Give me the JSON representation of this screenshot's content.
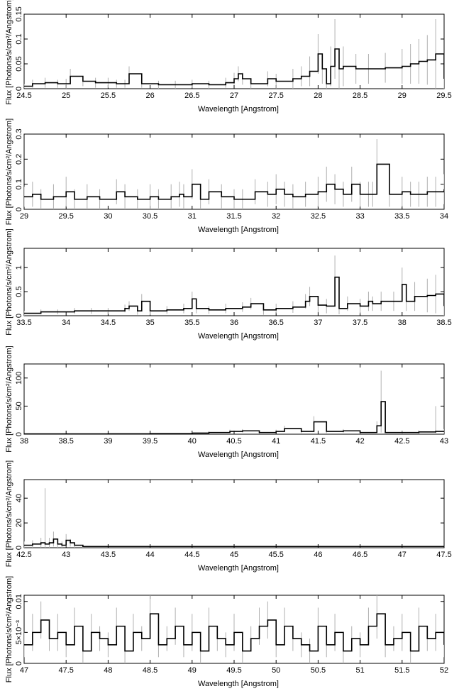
{
  "chart_data": [
    {
      "type": "line",
      "xlabel": "Wavelength [Angstrom]",
      "ylabel": "Flux [Photons/s/cm²/Angstrom]",
      "xlim": [
        24.5,
        29.5
      ],
      "ylim": [
        0,
        0.15
      ],
      "xticks": [
        {
          "v": 24.5,
          "label": "24.5"
        },
        {
          "v": 25,
          "label": "25"
        },
        {
          "v": 25.5,
          "label": "25.5"
        },
        {
          "v": 26,
          "label": "26"
        },
        {
          "v": 26.5,
          "label": "26.5"
        },
        {
          "v": 27,
          "label": "27"
        },
        {
          "v": 27.5,
          "label": "27.5"
        },
        {
          "v": 28,
          "label": "28"
        },
        {
          "v": 28.5,
          "label": "28.5"
        },
        {
          "v": 29,
          "label": "29"
        },
        {
          "v": 29.5,
          "label": "29.5"
        }
      ],
      "yticks": [
        {
          "v": 0,
          "label": "0"
        },
        {
          "v": 0.05,
          "label": "0.05"
        },
        {
          "v": 0.1,
          "label": "0.1"
        },
        {
          "v": 0.15,
          "label": "0.15"
        }
      ],
      "series": [
        {
          "x": [
            24.5,
            24.6,
            24.75,
            24.9,
            25.0,
            25.05,
            25.2,
            25.35,
            25.5,
            25.6,
            25.7,
            25.75,
            25.9,
            26.1,
            26.3,
            26.5,
            26.7,
            26.9,
            27.0,
            27.05,
            27.1,
            27.2,
            27.4,
            27.5,
            27.7,
            27.8,
            27.9,
            28.0,
            28.05,
            28.1,
            28.15,
            28.2,
            28.25,
            28.3,
            28.45,
            28.6,
            28.8,
            29.0,
            29.1,
            29.2,
            29.3,
            29.4,
            29.5
          ],
          "y": [
            0.005,
            0.01,
            0.012,
            0.01,
            0.01,
            0.025,
            0.015,
            0.012,
            0.012,
            0.01,
            0.01,
            0.03,
            0.01,
            0.008,
            0.008,
            0.01,
            0.008,
            0.012,
            0.02,
            0.03,
            0.02,
            0.01,
            0.02,
            0.015,
            0.02,
            0.025,
            0.035,
            0.07,
            0.04,
            0.01,
            0.045,
            0.08,
            0.04,
            0.045,
            0.04,
            0.04,
            0.042,
            0.045,
            0.05,
            0.055,
            0.058,
            0.07,
            0.02
          ],
          "err": [
            0.004,
            0.008,
            0.01,
            0.008,
            0.01,
            0.015,
            0.01,
            0.01,
            0.01,
            0.008,
            0.008,
            0.015,
            0.008,
            0.008,
            0.008,
            0.008,
            0.008,
            0.01,
            0.012,
            0.015,
            0.012,
            0.01,
            0.015,
            0.015,
            0.02,
            0.02,
            0.03,
            0.04,
            0.03,
            0.01,
            0.04,
            0.06,
            0.04,
            0.04,
            0.03,
            0.03,
            0.03,
            0.035,
            0.04,
            0.045,
            0.05,
            0.07,
            0.03
          ]
        }
      ]
    },
    {
      "type": "line",
      "xlabel": "Wavelength [Angstrom]",
      "ylabel": "Flux [Photons/s/cm²/Angstrom]",
      "xlim": [
        29,
        34
      ],
      "ylim": [
        0,
        0.3
      ],
      "xticks": [
        {
          "v": 29,
          "label": "29"
        },
        {
          "v": 29.5,
          "label": "29.5"
        },
        {
          "v": 30,
          "label": "30"
        },
        {
          "v": 30.5,
          "label": "30.5"
        },
        {
          "v": 31,
          "label": "31"
        },
        {
          "v": 31.5,
          "label": "31.5"
        },
        {
          "v": 32,
          "label": "32"
        },
        {
          "v": 32.5,
          "label": "32.5"
        },
        {
          "v": 33,
          "label": "33"
        },
        {
          "v": 33.5,
          "label": "33.5"
        },
        {
          "v": 34,
          "label": "34"
        }
      ],
      "yticks": [
        {
          "v": 0,
          "label": "0"
        },
        {
          "v": 0.1,
          "label": "0.1"
        },
        {
          "v": 0.2,
          "label": "0.2"
        },
        {
          "v": 0.3,
          "label": "0.3"
        }
      ],
      "series": [
        {
          "x": [
            29.0,
            29.1,
            29.2,
            29.35,
            29.5,
            29.6,
            29.75,
            29.9,
            30.1,
            30.2,
            30.35,
            30.5,
            30.6,
            30.75,
            30.85,
            30.9,
            31.0,
            31.1,
            31.2,
            31.35,
            31.5,
            31.6,
            31.75,
            31.9,
            32.0,
            32.1,
            32.2,
            32.35,
            32.5,
            32.6,
            32.7,
            32.8,
            32.9,
            33.0,
            33.1,
            33.15,
            33.2,
            33.35,
            33.5,
            33.6,
            33.7,
            33.8,
            33.9,
            34.0
          ],
          "y": [
            0.05,
            0.06,
            0.04,
            0.05,
            0.07,
            0.04,
            0.05,
            0.04,
            0.07,
            0.05,
            0.04,
            0.05,
            0.04,
            0.05,
            0.06,
            0.05,
            0.1,
            0.04,
            0.07,
            0.05,
            0.04,
            0.04,
            0.07,
            0.06,
            0.08,
            0.06,
            0.05,
            0.06,
            0.07,
            0.1,
            0.08,
            0.06,
            0.1,
            0.06,
            0.06,
            0.06,
            0.18,
            0.06,
            0.07,
            0.06,
            0.06,
            0.07,
            0.07,
            0.08
          ],
          "err": [
            0.04,
            0.05,
            0.04,
            0.05,
            0.06,
            0.04,
            0.05,
            0.04,
            0.05,
            0.05,
            0.04,
            0.05,
            0.04,
            0.05,
            0.05,
            0.05,
            0.06,
            0.04,
            0.05,
            0.05,
            0.04,
            0.04,
            0.05,
            0.05,
            0.06,
            0.05,
            0.05,
            0.05,
            0.06,
            0.07,
            0.06,
            0.05,
            0.07,
            0.05,
            0.05,
            0.05,
            0.1,
            0.05,
            0.06,
            0.05,
            0.05,
            0.06,
            0.06,
            0.06
          ]
        }
      ]
    },
    {
      "type": "line",
      "xlabel": "Wavelength [Angstrom]",
      "ylabel": "Flux [Photons/s/cm²/Angstrom]",
      "xlim": [
        33.5,
        38.5
      ],
      "ylim": [
        0,
        1.4
      ],
      "xticks": [
        {
          "v": 33.5,
          "label": "33.5"
        },
        {
          "v": 34,
          "label": "34"
        },
        {
          "v": 34.5,
          "label": "34.5"
        },
        {
          "v": 35,
          "label": "35"
        },
        {
          "v": 35.5,
          "label": "35.5"
        },
        {
          "v": 36,
          "label": "36"
        },
        {
          "v": 36.5,
          "label": "36.5"
        },
        {
          "v": 37,
          "label": "37"
        },
        {
          "v": 37.5,
          "label": "37.5"
        },
        {
          "v": 38,
          "label": "38"
        },
        {
          "v": 38.5,
          "label": "38.5"
        }
      ],
      "yticks": [
        {
          "v": 0,
          "label": "0"
        },
        {
          "v": 0.5,
          "label": "0.5"
        },
        {
          "v": 1,
          "label": "1"
        }
      ],
      "series": [
        {
          "x": [
            33.5,
            33.7,
            33.9,
            34.1,
            34.3,
            34.5,
            34.7,
            34.75,
            34.85,
            34.9,
            35.0,
            35.2,
            35.4,
            35.5,
            35.55,
            35.7,
            35.9,
            36.1,
            36.2,
            36.35,
            36.5,
            36.7,
            36.85,
            36.9,
            37.0,
            37.1,
            37.2,
            37.25,
            37.35,
            37.5,
            37.6,
            37.65,
            37.75,
            37.9,
            38.0,
            38.05,
            38.15,
            38.3,
            38.4,
            38.5
          ],
          "y": [
            0.05,
            0.08,
            0.08,
            0.1,
            0.1,
            0.1,
            0.15,
            0.2,
            0.1,
            0.3,
            0.1,
            0.12,
            0.15,
            0.35,
            0.15,
            0.12,
            0.15,
            0.18,
            0.25,
            0.12,
            0.15,
            0.18,
            0.3,
            0.4,
            0.22,
            0.2,
            0.8,
            0.15,
            0.25,
            0.2,
            0.3,
            0.25,
            0.3,
            0.3,
            0.65,
            0.3,
            0.4,
            0.42,
            0.45,
            0.2
          ],
          "err": [
            0.05,
            0.05,
            0.05,
            0.06,
            0.06,
            0.06,
            0.08,
            0.1,
            0.08,
            0.15,
            0.08,
            0.08,
            0.1,
            0.15,
            0.1,
            0.08,
            0.1,
            0.1,
            0.12,
            0.1,
            0.1,
            0.12,
            0.15,
            0.2,
            0.15,
            0.15,
            0.45,
            0.12,
            0.15,
            0.15,
            0.2,
            0.15,
            0.2,
            0.2,
            0.35,
            0.2,
            0.3,
            0.35,
            0.4,
            0.25
          ]
        }
      ]
    },
    {
      "type": "line",
      "xlabel": "Wavelength [Angstrom]",
      "ylabel": "Flux [Photons/s/cm²/Angstrom]",
      "xlim": [
        38,
        43
      ],
      "ylim": [
        0,
        125
      ],
      "xticks": [
        {
          "v": 38,
          "label": "38"
        },
        {
          "v": 38.5,
          "label": "38.5"
        },
        {
          "v": 39,
          "label": "39"
        },
        {
          "v": 39.5,
          "label": "39.5"
        },
        {
          "v": 40,
          "label": "40"
        },
        {
          "v": 40.5,
          "label": "40.5"
        },
        {
          "v": 41,
          "label": "41"
        },
        {
          "v": 41.5,
          "label": "41.5"
        },
        {
          "v": 42,
          "label": "42"
        },
        {
          "v": 42.5,
          "label": "42.5"
        },
        {
          "v": 43,
          "label": "43"
        }
      ],
      "yticks": [
        {
          "v": 0,
          "label": "0"
        },
        {
          "v": 50,
          "label": "50"
        },
        {
          "v": 100,
          "label": "100"
        }
      ],
      "series": [
        {
          "x": [
            38.0,
            38.5,
            39.0,
            39.5,
            40.0,
            40.2,
            40.45,
            40.6,
            40.8,
            41.0,
            41.1,
            41.3,
            41.45,
            41.6,
            41.8,
            42.0,
            42.2,
            42.25,
            42.3,
            42.5,
            42.7,
            42.9,
            43.0
          ],
          "y": [
            0.5,
            0.5,
            0.8,
            1.0,
            2.0,
            3.0,
            5.0,
            6.0,
            3.0,
            5.0,
            10.0,
            5.0,
            22.0,
            5.0,
            6.0,
            3.0,
            15.0,
            58.0,
            3.0,
            3.0,
            4.0,
            5.0,
            5.0
          ],
          "err": [
            0.5,
            0.5,
            0.8,
            1.0,
            2.0,
            2.0,
            3.0,
            3.0,
            2.0,
            3.0,
            5.0,
            3.0,
            10.0,
            3.0,
            3.0,
            2.0,
            8.0,
            55.0,
            3.0,
            3.0,
            3.0,
            45.0,
            4.0
          ]
        }
      ]
    },
    {
      "type": "line",
      "xlabel": "Wavelength [Angstrom]",
      "ylabel": "Flux [Photons/s/cm²/Angstrom]",
      "xlim": [
        42.5,
        47.5
      ],
      "ylim": [
        0,
        55
      ],
      "xticks": [
        {
          "v": 42.5,
          "label": "42.5"
        },
        {
          "v": 43,
          "label": "43"
        },
        {
          "v": 43.5,
          "label": "43.5"
        },
        {
          "v": 44,
          "label": "44"
        },
        {
          "v": 44.5,
          "label": "44.5"
        },
        {
          "v": 45,
          "label": "45"
        },
        {
          "v": 45.5,
          "label": "45.5"
        },
        {
          "v": 46,
          "label": "46"
        },
        {
          "v": 46.5,
          "label": "46.5"
        },
        {
          "v": 47,
          "label": "47"
        },
        {
          "v": 47.5,
          "label": "47.5"
        }
      ],
      "yticks": [
        {
          "v": 0,
          "label": "0"
        },
        {
          "v": 20,
          "label": "20"
        },
        {
          "v": 40,
          "label": "40"
        }
      ],
      "series": [
        {
          "x": [
            42.5,
            42.6,
            42.7,
            42.75,
            42.8,
            42.85,
            42.9,
            42.95,
            43.0,
            43.05,
            43.1,
            43.2
          ],
          "y": [
            2.0,
            3.0,
            4.0,
            3.0,
            4.0,
            7.0,
            3.0,
            2.0,
            6.0,
            4.0,
            2.0,
            1.0
          ],
          "err": [
            3.0,
            3.0,
            4.0,
            45.0,
            4.0,
            6.0,
            3.0,
            3.0,
            5.0,
            3.0,
            2.0,
            1.0
          ]
        }
      ]
    },
    {
      "type": "line",
      "xlabel": "Wavelength [Angstrom]",
      "ylabel": "Flux [Photons/s/cm²/Angstrom]",
      "xlim": [
        47,
        52
      ],
      "ylim": [
        0,
        0.011
      ],
      "xticks": [
        {
          "v": 47,
          "label": "47"
        },
        {
          "v": 47.5,
          "label": "47.5"
        },
        {
          "v": 48,
          "label": "48"
        },
        {
          "v": 48.5,
          "label": "48.5"
        },
        {
          "v": 49,
          "label": "49"
        },
        {
          "v": 49.5,
          "label": "49.5"
        },
        {
          "v": 50,
          "label": "50"
        },
        {
          "v": 50.5,
          "label": "50.5"
        },
        {
          "v": 51,
          "label": "51"
        },
        {
          "v": 51.5,
          "label": "51.5"
        },
        {
          "v": 52,
          "label": "52"
        }
      ],
      "yticks": [
        {
          "v": 0,
          "label": "0"
        },
        {
          "v": 0.005,
          "label": "5×10⁻³"
        },
        {
          "v": 0.01,
          "label": "0.01"
        }
      ],
      "series": [
        {
          "x": [
            47.0,
            47.1,
            47.2,
            47.3,
            47.4,
            47.5,
            47.6,
            47.7,
            47.8,
            47.9,
            48.0,
            48.1,
            48.2,
            48.3,
            48.4,
            48.5,
            48.6,
            48.7,
            48.8,
            48.9,
            49.0,
            49.1,
            49.2,
            49.3,
            49.4,
            49.5,
            49.6,
            49.7,
            49.8,
            49.9,
            50.0,
            50.1,
            50.2,
            50.3,
            50.4,
            50.5,
            50.6,
            50.7,
            50.8,
            50.9,
            51.0,
            51.1,
            51.2,
            51.3,
            51.4,
            51.5,
            51.6,
            51.7,
            51.8,
            51.9,
            52.0
          ],
          "y": [
            0.003,
            0.005,
            0.007,
            0.004,
            0.005,
            0.003,
            0.006,
            0.002,
            0.005,
            0.004,
            0.003,
            0.006,
            0.002,
            0.005,
            0.004,
            0.008,
            0.003,
            0.004,
            0.006,
            0.003,
            0.005,
            0.002,
            0.006,
            0.004,
            0.003,
            0.005,
            0.002,
            0.004,
            0.006,
            0.007,
            0.003,
            0.006,
            0.004,
            0.003,
            0.002,
            0.006,
            0.003,
            0.005,
            0.002,
            0.004,
            0.003,
            0.006,
            0.008,
            0.003,
            0.004,
            0.005,
            0.002,
            0.006,
            0.004,
            0.005,
            0.003
          ],
          "err": [
            0.002,
            0.003,
            0.003,
            0.002,
            0.003,
            0.002,
            0.003,
            0.002,
            0.003,
            0.002,
            0.002,
            0.003,
            0.002,
            0.003,
            0.002,
            0.004,
            0.002,
            0.002,
            0.003,
            0.002,
            0.003,
            0.002,
            0.003,
            0.002,
            0.002,
            0.003,
            0.002,
            0.002,
            0.003,
            0.003,
            0.002,
            0.003,
            0.002,
            0.002,
            0.002,
            0.003,
            0.002,
            0.003,
            0.002,
            0.002,
            0.002,
            0.003,
            0.004,
            0.002,
            0.002,
            0.003,
            0.002,
            0.003,
            0.002,
            0.003,
            0.002
          ]
        }
      ]
    }
  ]
}
